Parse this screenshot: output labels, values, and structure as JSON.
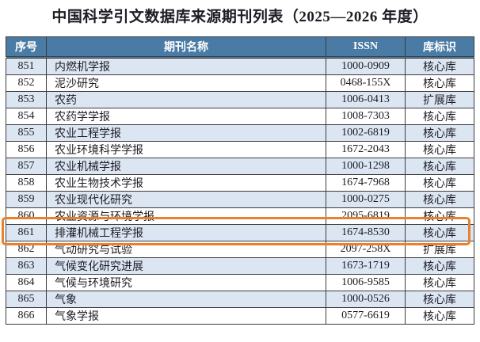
{
  "title": "中国科学引文数据库来源期刊列表（2025—2026 年度）",
  "table": {
    "headers": {
      "no": "序号",
      "name": "期刊名称",
      "issn": "ISSN",
      "db": "库标识"
    },
    "rows": [
      {
        "no": "851",
        "name": "内燃机学报",
        "issn": "1000-0909",
        "db": "核心库"
      },
      {
        "no": "852",
        "name": "泥沙研究",
        "issn": "0468-155X",
        "db": "核心库"
      },
      {
        "no": "853",
        "name": "农药",
        "issn": "1006-0413",
        "db": "扩展库"
      },
      {
        "no": "854",
        "name": "农药学学报",
        "issn": "1008-7303",
        "db": "核心库"
      },
      {
        "no": "855",
        "name": "农业工程学报",
        "issn": "1002-6819",
        "db": "核心库"
      },
      {
        "no": "856",
        "name": "农业环境科学学报",
        "issn": "1672-2043",
        "db": "核心库"
      },
      {
        "no": "857",
        "name": "农业机械学报",
        "issn": "1000-1298",
        "db": "核心库"
      },
      {
        "no": "858",
        "name": "农业生物技术学报",
        "issn": "1674-7968",
        "db": "核心库"
      },
      {
        "no": "859",
        "name": "农业现代化研究",
        "issn": "1000-0275",
        "db": "核心库"
      },
      {
        "no": "860",
        "name": "农业资源与环境学报",
        "issn": "2095-6819",
        "db": "核心库"
      },
      {
        "no": "861",
        "name": "排灌机械工程学报",
        "issn": "1674-8530",
        "db": "核心库"
      },
      {
        "no": "862",
        "name": "气动研究与试验",
        "issn": "2097-258X",
        "db": "扩展库"
      },
      {
        "no": "863",
        "name": "气候变化研究进展",
        "issn": "1673-1719",
        "db": "核心库"
      },
      {
        "no": "864",
        "name": "气候与环境研究",
        "issn": "1006-9585",
        "db": "核心库"
      },
      {
        "no": "865",
        "name": "气象",
        "issn": "1000-0526",
        "db": "核心库"
      },
      {
        "no": "866",
        "name": "气象学报",
        "issn": "0577-6619",
        "db": "核心库"
      }
    ],
    "highlighted_row_no": "861"
  },
  "colors": {
    "page_bg": "#ffffff",
    "header_bg": "#4a7ba4",
    "header_text": "#ffffff",
    "row_bg": "#ffffff",
    "row_alt_bg": "#dce6f2",
    "grid_border": "#3c3c3c",
    "text": "#1c1c24",
    "highlight_border": "#e8802c"
  }
}
